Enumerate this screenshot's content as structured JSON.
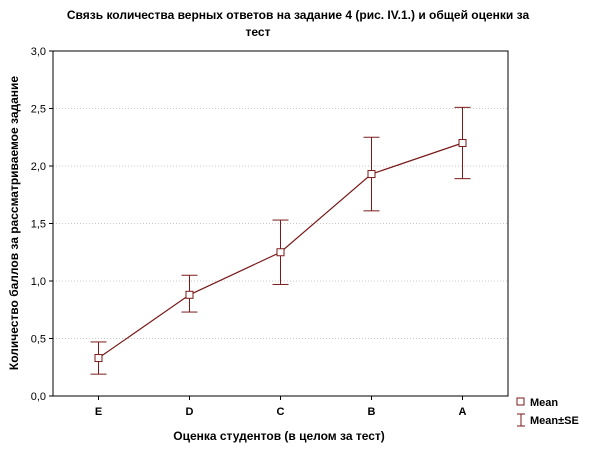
{
  "chart_data": {
    "type": "line",
    "title_line1": "Связь количества верных ответов на задание 4 (рис.   IV.1.) и общей оценки за",
    "title_line2": "тест",
    "xlabel": "Оценка студентов (в целом за тест)",
    "ylabel": "Количество баллов за рассматриваемое задание",
    "categories": [
      "E",
      "D",
      "C",
      "B",
      "A"
    ],
    "ylim": [
      0,
      3
    ],
    "yticks": [
      "0,0",
      "0,5",
      "1,0",
      "1,5",
      "2,0",
      "2,5",
      "3,0"
    ],
    "grid": true,
    "legend_position": "bottom-right",
    "series": [
      {
        "name": "Mean",
        "values": [
          0.33,
          0.88,
          1.25,
          1.93,
          2.2
        ],
        "se_low": [
          0.19,
          0.73,
          0.97,
          1.61,
          1.89
        ],
        "se_high": [
          0.47,
          1.05,
          1.53,
          2.25,
          2.51
        ]
      }
    ],
    "legend": [
      {
        "label": "Mean",
        "symbol": "square-marker"
      },
      {
        "label": "Mean±SE",
        "symbol": "error-bar"
      }
    ],
    "color": "#7a1a1a"
  }
}
